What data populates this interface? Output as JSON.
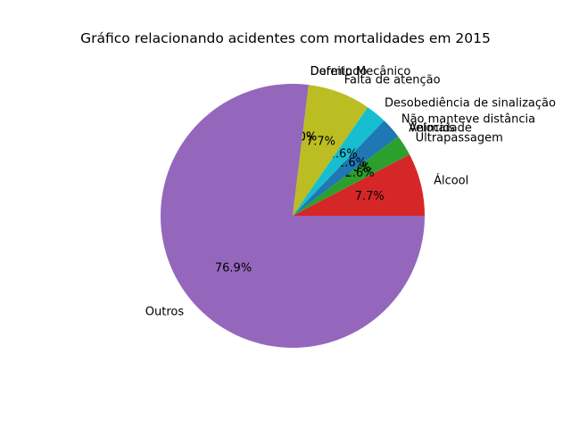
{
  "chart_data": {
    "type": "pie",
    "title": "Gráfico relacionando acidentes com mortalidades em 2015",
    "start_angle_deg": 0,
    "direction": "counterclockwise",
    "slices": [
      {
        "label": "Álcool",
        "value": 3,
        "percent_label": "7.7%",
        "color": "#d62728"
      },
      {
        "label": "Ultrapassagem",
        "value": 1,
        "percent_label": "2.6%",
        "color": "#2ca02c"
      },
      {
        "label": "Velocidade",
        "value": 0,
        "percent_label": "0.0%",
        "color": "#ff7f0e"
      },
      {
        "label": "Animais",
        "value": 0,
        "percent_label": "0.0%",
        "color": "#1f77b4"
      },
      {
        "label": "Não manteve distância",
        "value": 1,
        "percent_label": "2.6%",
        "color": "#1f77b4"
      },
      {
        "label": "Desobediência de sinalização",
        "value": 1,
        "percent_label": "2.6%",
        "color": "#17becf"
      },
      {
        "label": "Falta de atenção",
        "value": 3,
        "percent_label": "7.7%",
        "color": "#bcbd22"
      },
      {
        "label": "Defeito Mecânico",
        "value": 0,
        "percent_label": "0.0%",
        "color": "#7f7f7f"
      },
      {
        "label": "Dormindo",
        "value": 0,
        "percent_label": "0.0%",
        "color": "#e377c2"
      },
      {
        "label": "Outros",
        "value": 30,
        "percent_label": "76.9%",
        "color": "#9467bd"
      }
    ]
  }
}
